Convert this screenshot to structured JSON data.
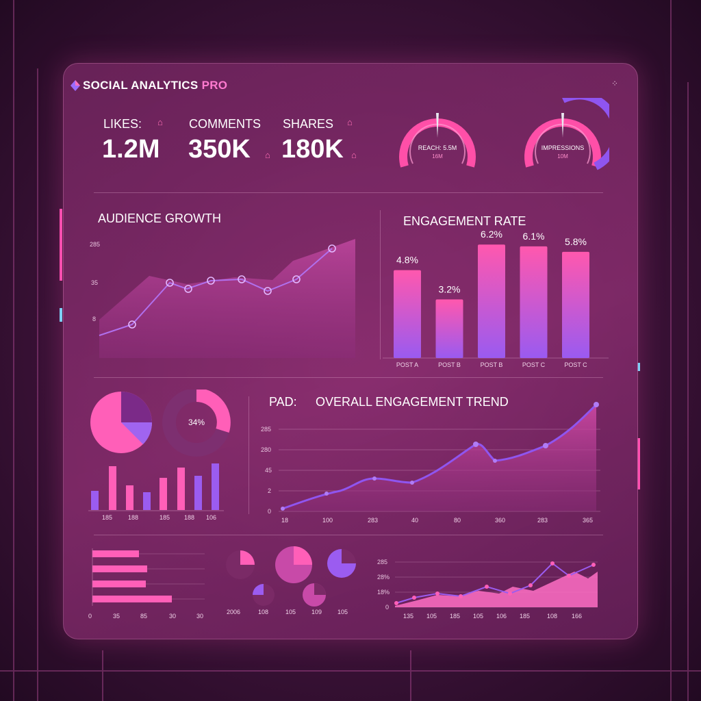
{
  "header": {
    "title_main": "SOCIAL ANALYTICS ",
    "title_accent": "PRO",
    "menu_icon": "grid-dots-icon"
  },
  "stats": [
    {
      "label": "LIKES:",
      "value": "1.2M"
    },
    {
      "label": "COMMENTS",
      "value": "350K"
    },
    {
      "label": "SHARES",
      "value": "180K"
    }
  ],
  "gauges": [
    {
      "label": "REACH: 5.5M",
      "sub": "16M",
      "level": 0.5
    },
    {
      "label": "IMPRESSIONS",
      "sub": "10M",
      "level": 0.5
    }
  ],
  "audience_growth": {
    "title": "AUDIENCE GROWTH",
    "yticks": [
      "285",
      "35",
      "8"
    ]
  },
  "engagement_rate": {
    "title": "ENGAGEMENT RATE",
    "chart_data": {
      "type": "bar",
      "categories": [
        "POST A",
        "POST B",
        "POST B",
        "POST C",
        "POST C"
      ],
      "values": [
        4.8,
        3.2,
        6.2,
        6.1,
        5.8
      ],
      "value_labels": [
        "4.8%",
        "3.2%",
        "6.2%",
        "6.1%",
        "5.8%"
      ]
    }
  },
  "small_charts": {
    "donut_label": "34%",
    "bar_ticks": [
      "185",
      "188",
      "185",
      "188",
      "106"
    ]
  },
  "overall_trend": {
    "prefix": "PAD:",
    "title": "OVERALL ENGAGEMENT TREND",
    "chart_data": {
      "type": "area",
      "x": [
        "18",
        "100",
        "283",
        "40",
        "80",
        "360",
        "283",
        "365"
      ],
      "yticks": [
        "285",
        "280",
        "45",
        "2",
        "0"
      ]
    }
  },
  "bottom": {
    "hbar_ticks": [
      "0",
      "35",
      "85",
      "30",
      "30"
    ],
    "pie_ticks": [
      "2006",
      "108",
      "105",
      "109",
      "105"
    ],
    "line_yticks": [
      "285",
      "28%",
      "18%",
      "0"
    ],
    "line_xticks": [
      "135",
      "105",
      "185",
      "105",
      "106",
      "185",
      "108",
      "166"
    ]
  },
  "colors": {
    "accent": "#ff5fb8",
    "purple": "#9b5cf0",
    "panel": "#7a2a66"
  }
}
